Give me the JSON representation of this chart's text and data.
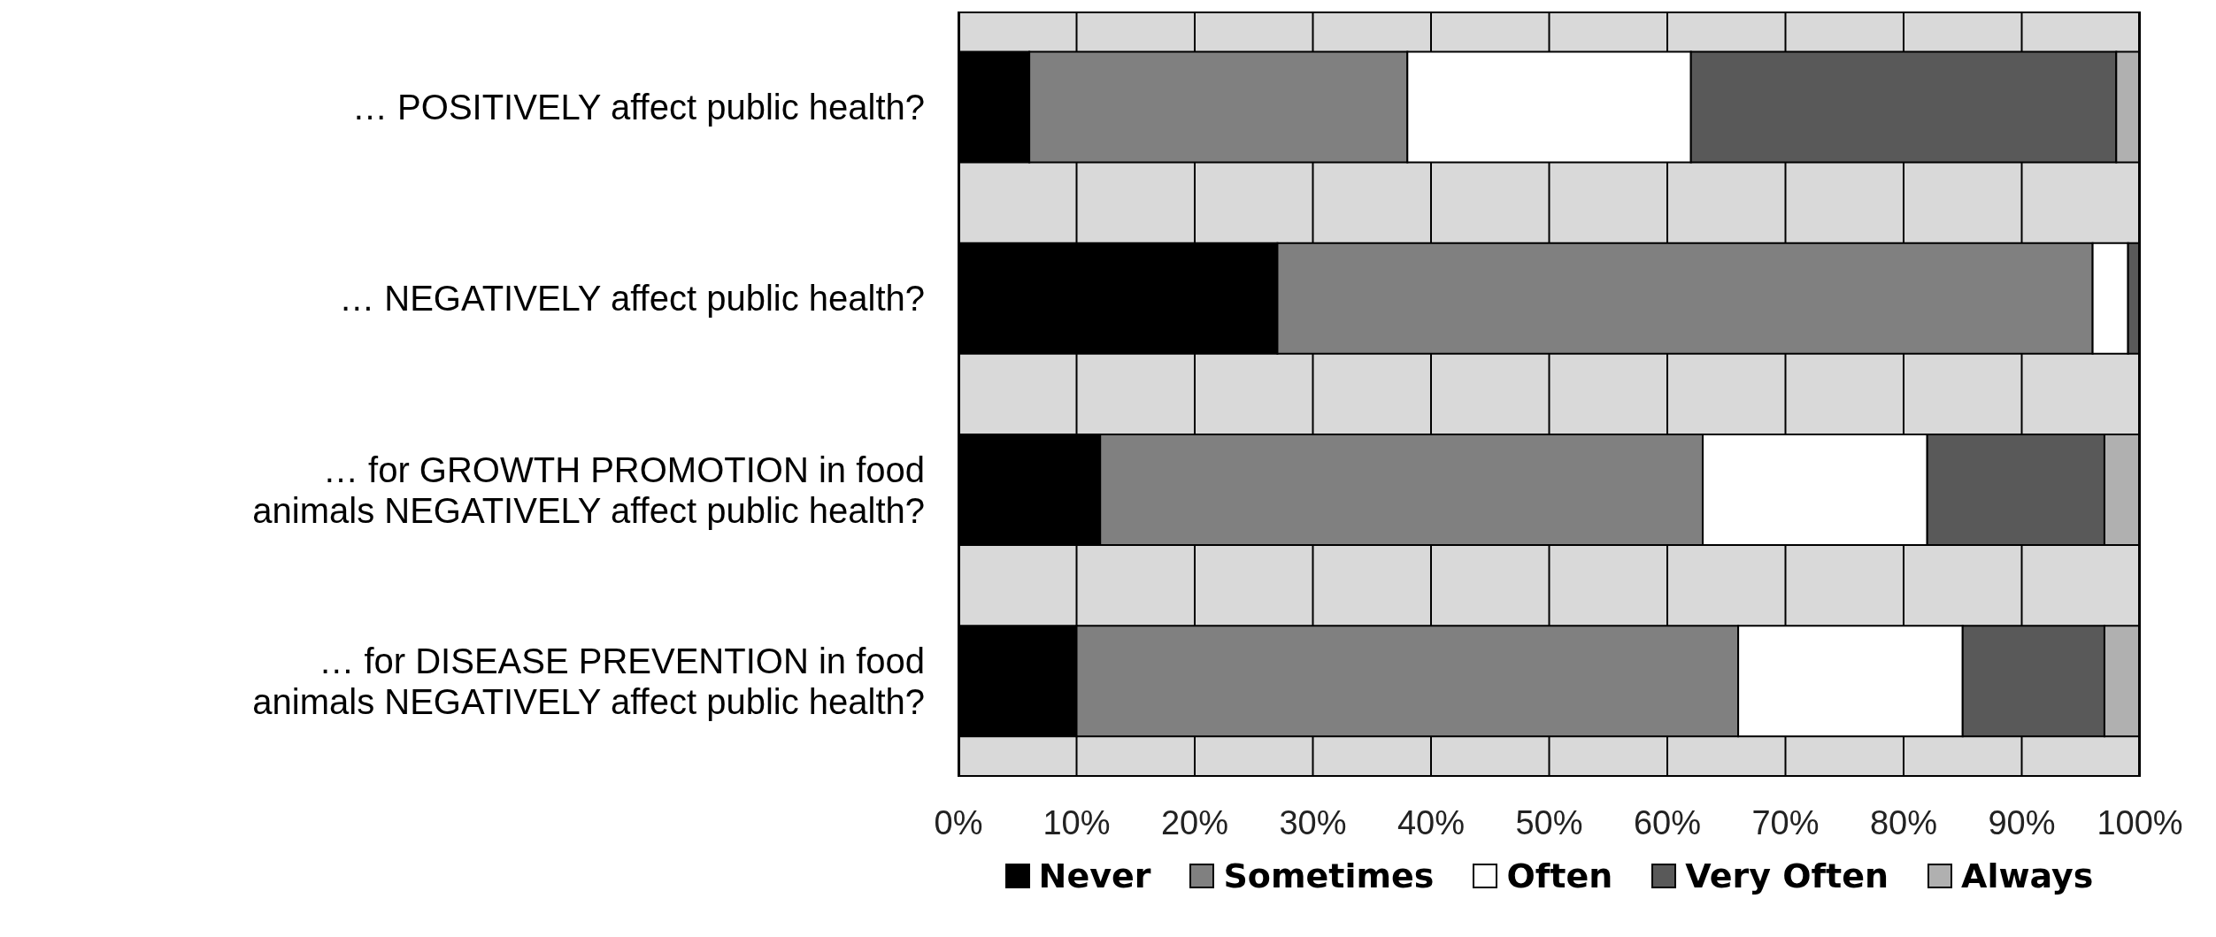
{
  "chart_data": {
    "type": "bar",
    "orientation": "horizontal",
    "stacked": true,
    "categories": [
      "… POSITIVELY affect public health?",
      "… NEGATIVELY affect public health?",
      "… for GROWTH PROMOTION in food animals NEGATIVELY affect public health?",
      "… for DISEASE PREVENTION in food animals NEGATIVELY affect public health?"
    ],
    "series": [
      {
        "name": "Never",
        "color": "#000000",
        "values": [
          6,
          27,
          12,
          10
        ]
      },
      {
        "name": "Sometimes",
        "color": "#808080",
        "values": [
          32,
          69,
          51,
          56
        ]
      },
      {
        "name": "Often",
        "color": "#ffffff",
        "values": [
          24,
          3,
          19,
          19
        ]
      },
      {
        "name": "Very Often",
        "color": "#595959",
        "values": [
          36,
          1,
          15,
          12
        ]
      },
      {
        "name": "Always",
        "color": "#b0b0b0",
        "values": [
          2,
          0,
          3,
          3
        ]
      }
    ],
    "xlim": [
      0,
      100
    ],
    "xticks": [
      {
        "value": 0,
        "label": "0%"
      },
      {
        "value": 10,
        "label": "10%"
      },
      {
        "value": 20,
        "label": "20%"
      },
      {
        "value": 30,
        "label": "30%"
      },
      {
        "value": 40,
        "label": "40%"
      },
      {
        "value": 50,
        "label": "50%"
      },
      {
        "value": 60,
        "label": "60%"
      },
      {
        "value": 70,
        "label": "70%"
      },
      {
        "value": 80,
        "label": "80%"
      },
      {
        "value": 90,
        "label": "90%"
      },
      {
        "value": 100,
        "label": "100%"
      }
    ],
    "grid": "x",
    "legend": "bottom"
  }
}
